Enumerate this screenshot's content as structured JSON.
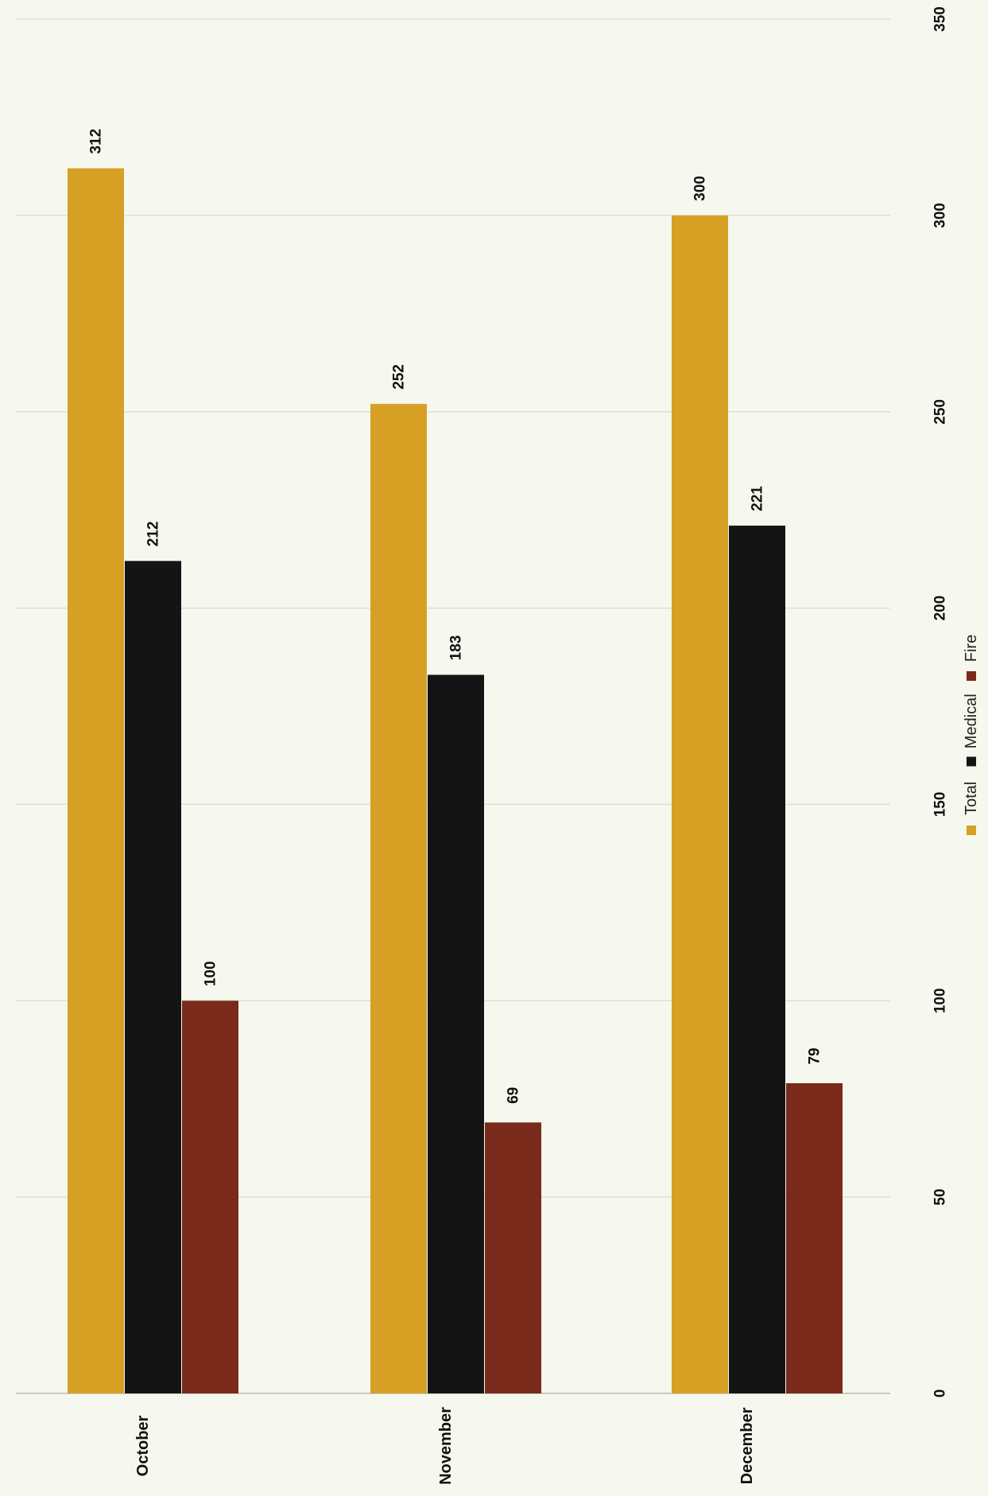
{
  "chart_data": {
    "type": "bar",
    "orientation": "vertical, page rotated 90 degrees",
    "categories": [
      "October",
      "November",
      "December"
    ],
    "series": [
      {
        "name": "Total",
        "values": [
          312,
          252,
          300
        ],
        "color": "#d6a025"
      },
      {
        "name": "Medical",
        "values": [
          212,
          183,
          221
        ],
        "color": "#141414"
      },
      {
        "name": "Fire",
        "values": [
          100,
          69,
          79
        ],
        "color": "#7a2a1a"
      }
    ],
    "ylim": [
      0,
      350
    ],
    "yticks": [
      0,
      50,
      100,
      150,
      200,
      250,
      300,
      350
    ],
    "grid": true,
    "legend": "bottom",
    "title": "",
    "xlabel": "",
    "ylabel": ""
  }
}
